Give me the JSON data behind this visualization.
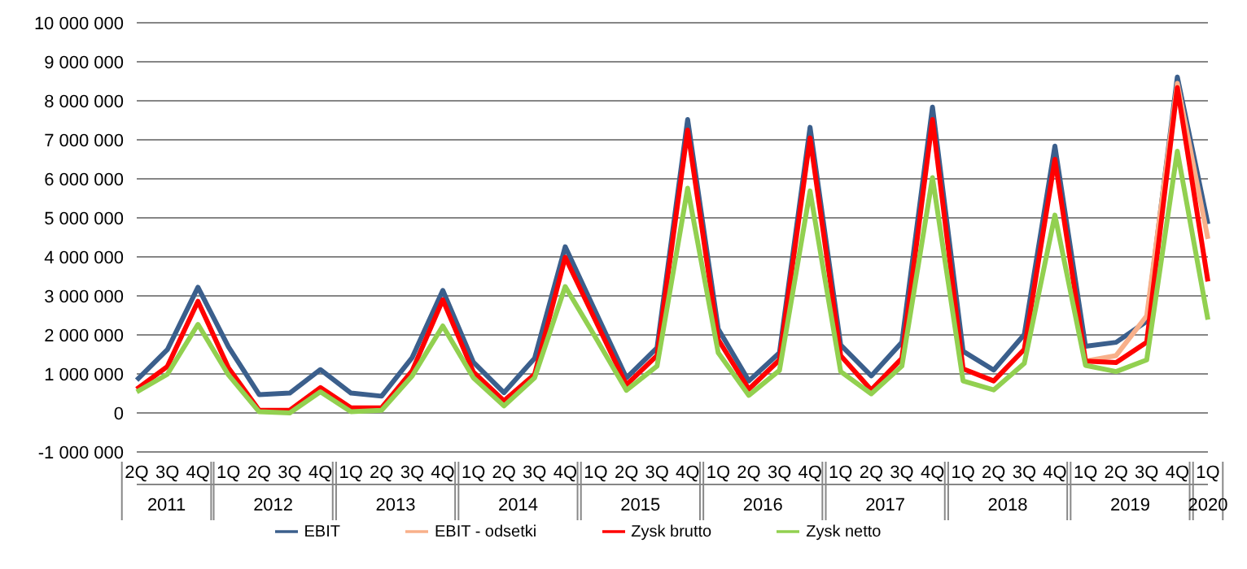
{
  "chart_data": {
    "type": "line",
    "categories": [
      "2Q",
      "3Q",
      "4Q",
      "1Q",
      "2Q",
      "3Q",
      "4Q",
      "1Q",
      "2Q",
      "3Q",
      "4Q",
      "1Q",
      "2Q",
      "3Q",
      "4Q",
      "1Q",
      "2Q",
      "3Q",
      "4Q",
      "1Q",
      "2Q",
      "3Q",
      "4Q",
      "1Q",
      "2Q",
      "3Q",
      "4Q",
      "1Q",
      "2Q",
      "3Q",
      "4Q",
      "1Q",
      "2Q",
      "3Q",
      "4Q",
      "1Q"
    ],
    "series": [
      {
        "name": "EBIT",
        "color": "#3b5f8c",
        "values": [
          840000,
          1620000,
          3220000,
          1690000,
          470000,
          510000,
          1110000,
          510000,
          430000,
          1420000,
          3140000,
          1300000,
          520000,
          1400000,
          4260000,
          2580000,
          900000,
          1670000,
          7520000,
          2150000,
          820000,
          1540000,
          7320000,
          1740000,
          950000,
          1810000,
          7840000,
          1580000,
          1100000,
          2010000,
          6840000,
          1710000,
          1810000,
          2350000,
          8610000,
          4840000
        ]
      },
      {
        "name": "EBIT - odsetki",
        "color": "#f8b08a",
        "values": [
          null,
          null,
          null,
          null,
          null,
          null,
          null,
          null,
          null,
          null,
          null,
          null,
          null,
          null,
          null,
          null,
          null,
          null,
          null,
          null,
          null,
          null,
          null,
          null,
          null,
          null,
          null,
          null,
          null,
          null,
          null,
          1330000,
          1470000,
          2490000,
          8450000,
          4460000
        ]
      },
      {
        "name": "Zysk brutto",
        "color": "#ff0000",
        "values": [
          610000,
          1190000,
          2860000,
          1150000,
          70000,
          70000,
          650000,
          130000,
          130000,
          1080000,
          2900000,
          1050000,
          310000,
          990000,
          3990000,
          2350000,
          720000,
          1470000,
          7250000,
          1880000,
          610000,
          1360000,
          7050000,
          1470000,
          590000,
          1400000,
          7520000,
          1130000,
          820000,
          1630000,
          6500000,
          1330000,
          1290000,
          1810000,
          8340000,
          3370000
        ]
      },
      {
        "name": "Zysk netto",
        "color": "#92d050",
        "values": [
          540000,
          990000,
          2270000,
          970000,
          30000,
          0,
          540000,
          30000,
          70000,
          950000,
          2230000,
          900000,
          180000,
          900000,
          3240000,
          1920000,
          580000,
          1200000,
          5760000,
          1540000,
          450000,
          1090000,
          5690000,
          1060000,
          490000,
          1200000,
          6030000,
          820000,
          590000,
          1270000,
          5070000,
          1220000,
          1060000,
          1360000,
          6710000,
          2390000
        ]
      }
    ],
    "ylim": [
      -1000000,
      10000000
    ],
    "yticks": [
      {
        "value": -1000000,
        "label": "-1 000 000"
      },
      0,
      {
        "value": 1000000,
        "label": "1 000 000"
      },
      {
        "value": 2000000,
        "label": "2 000 000"
      },
      {
        "value": 3000000,
        "label": "3 000 000"
      },
      {
        "value": 4000000,
        "label": "4 000 000"
      },
      {
        "value": 5000000,
        "label": "5 000 000"
      },
      {
        "value": 6000000,
        "label": "6 000 000"
      },
      {
        "value": 7000000,
        "label": "7 000 000"
      },
      {
        "value": 8000000,
        "label": "8 000 000"
      },
      {
        "value": 9000000,
        "label": "9 000 000"
      },
      {
        "value": 10000000,
        "label": "10 000 000"
      }
    ],
    "annotations": [
      "2011",
      "2012",
      "2013",
      "2014",
      "2015",
      "2016",
      "2017",
      "2018",
      "2019",
      "2020"
    ],
    "grid": "y",
    "legend": "bottom",
    "marker": "none",
    "line_style": "solid"
  }
}
